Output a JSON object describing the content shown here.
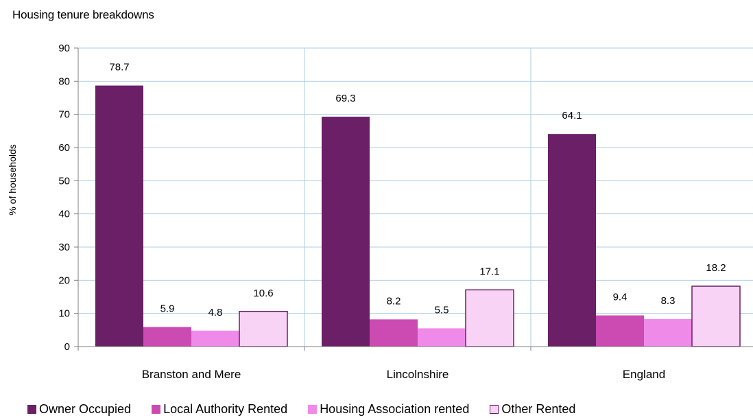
{
  "chart_data": {
    "type": "bar",
    "title": "Housing tenure breakdowns",
    "ylabel": "% of households",
    "xlabel": "",
    "ylim": [
      0,
      90
    ],
    "yticks": [
      0,
      10,
      20,
      30,
      40,
      50,
      60,
      70,
      80,
      90
    ],
    "grid": true,
    "legend_position": "bottom",
    "categories": [
      "Branston and Mere",
      "Lincolnshire",
      "England"
    ],
    "series": [
      {
        "name": "Owner Occupied",
        "color": "#6a1f66",
        "values": [
          78.7,
          69.3,
          64.1
        ],
        "labels": [
          "78.7",
          "69.3",
          "64.1"
        ]
      },
      {
        "name": "Local Authority Rented",
        "color": "#cc4bb3",
        "values": [
          5.9,
          8.2,
          9.4
        ],
        "labels": [
          "5.9",
          "8.2",
          "9.4"
        ]
      },
      {
        "name": "Housing Association rented",
        "color": "#f08ae9",
        "values": [
          4.8,
          5.5,
          8.3
        ],
        "labels": [
          "4.8",
          "5.5",
          "8.3"
        ]
      },
      {
        "name": "Other Rented",
        "color": "#f9d3f6",
        "values": [
          10.6,
          17.1,
          18.2
        ],
        "labels": [
          "10.6",
          "17.1",
          "18.2"
        ]
      }
    ]
  }
}
